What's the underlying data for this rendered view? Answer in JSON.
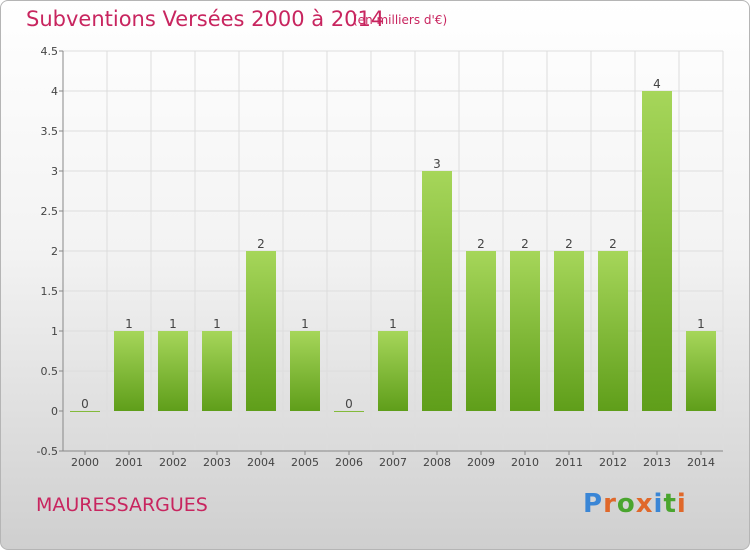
{
  "header": {
    "title": "Subventions Versées 2000 à 2014",
    "unit": "(en milliers d'€)"
  },
  "commune": "MAURESSARGUES",
  "logo": {
    "text": "Proxiti",
    "letter_colors": [
      "#3a86d6",
      "#e0682a",
      "#4aa52e",
      "#e0682a",
      "#3a86d6",
      "#4aa52e",
      "#e0682a"
    ]
  },
  "colors": {
    "bar_light": "#a6d65a",
    "bar_dark": "#5f9e1a",
    "grid": "#dddddd",
    "axis": "#888888"
  },
  "chart_data": {
    "type": "bar",
    "title": "Subventions Versées 2000 à 2014",
    "categories": [
      "2000",
      "2001",
      "2002",
      "2003",
      "2004",
      "2005",
      "2006",
      "2007",
      "2008",
      "2009",
      "2010",
      "2011",
      "2012",
      "2013",
      "2014"
    ],
    "values": [
      0,
      1,
      1,
      1,
      2,
      1,
      0,
      1,
      3,
      2,
      2,
      2,
      2,
      4,
      1
    ],
    "data_labels": [
      "0",
      "1",
      "1",
      "1",
      "2",
      "1",
      "0",
      "1",
      "3",
      "2",
      "2",
      "2",
      "2",
      "4",
      "1"
    ],
    "ylim": [
      -0.5,
      4.5
    ],
    "yticks": [
      -0.5,
      0,
      0.5,
      1,
      1.5,
      2,
      2.5,
      3,
      3.5,
      4,
      4.5
    ],
    "ytick_labels": [
      "-0.5",
      "0",
      "0.5",
      "1",
      "1.5",
      "2",
      "2.5",
      "3",
      "3.5",
      "4",
      "4.5"
    ],
    "grid": true,
    "xlabel": "",
    "ylabel": ""
  }
}
